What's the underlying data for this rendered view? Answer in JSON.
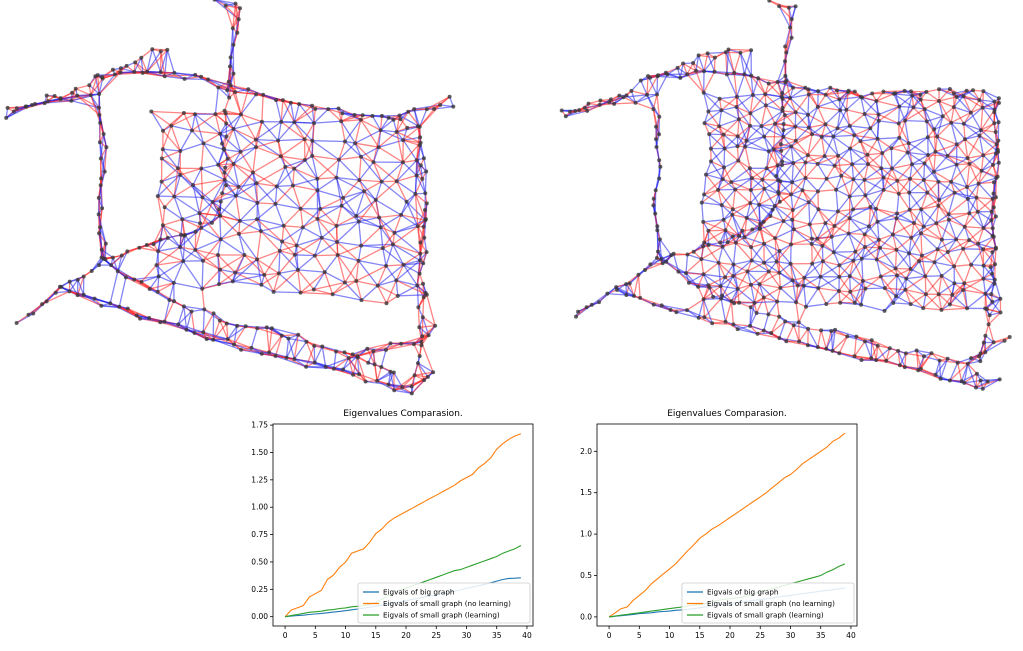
{
  "chart_data": [
    {
      "type": "line",
      "title": "Eigenvalues Comparasion.",
      "xlim": [
        -2,
        41
      ],
      "ylim": [
        -0.085,
        1.76
      ],
      "xticks": [
        "0",
        "5",
        "10",
        "15",
        "20",
        "25",
        "30",
        "35",
        "40"
      ],
      "yticks": [
        "0.00",
        "0.25",
        "0.50",
        "0.75",
        "1.00",
        "1.25",
        "1.50",
        "1.75"
      ],
      "legend_position": "lower-right",
      "x": [
        0,
        1,
        2,
        3,
        4,
        5,
        6,
        7,
        8,
        9,
        10,
        11,
        12,
        13,
        14,
        15,
        16,
        17,
        18,
        19,
        20,
        21,
        22,
        23,
        24,
        25,
        26,
        27,
        28,
        29,
        30,
        31,
        32,
        33,
        34,
        35,
        36,
        37,
        38,
        39
      ],
      "series": [
        {
          "name": "Eigvals of big graph",
          "color": "#1f77b4",
          "values": [
            0,
            0.005,
            0.01,
            0.014,
            0.02,
            0.025,
            0.03,
            0.036,
            0.042,
            0.048,
            0.055,
            0.063,
            0.07,
            0.078,
            0.087,
            0.096,
            0.105,
            0.115,
            0.125,
            0.135,
            0.146,
            0.157,
            0.168,
            0.18,
            0.19,
            0.2,
            0.21,
            0.22,
            0.232,
            0.245,
            0.258,
            0.27,
            0.283,
            0.296,
            0.31,
            0.325,
            0.34,
            0.35,
            0.352,
            0.355
          ]
        },
        {
          "name": "Eigvals of small graph (no learning)",
          "color": "#ff7f0e",
          "values": [
            0,
            0.06,
            0.08,
            0.1,
            0.18,
            0.21,
            0.24,
            0.34,
            0.38,
            0.45,
            0.5,
            0.58,
            0.6,
            0.62,
            0.68,
            0.76,
            0.8,
            0.86,
            0.9,
            0.93,
            0.96,
            0.99,
            1.02,
            1.05,
            1.08,
            1.11,
            1.14,
            1.17,
            1.2,
            1.24,
            1.27,
            1.3,
            1.36,
            1.4,
            1.45,
            1.53,
            1.58,
            1.62,
            1.65,
            1.67
          ]
        },
        {
          "name": "Eigvals of small graph (learning)",
          "color": "#2ca02c",
          "values": [
            0,
            0.01,
            0.02,
            0.03,
            0.04,
            0.045,
            0.05,
            0.06,
            0.065,
            0.075,
            0.08,
            0.09,
            0.095,
            0.1,
            0.11,
            0.13,
            0.16,
            0.19,
            0.22,
            0.24,
            0.26,
            0.28,
            0.3,
            0.32,
            0.34,
            0.36,
            0.38,
            0.4,
            0.42,
            0.43,
            0.45,
            0.47,
            0.49,
            0.51,
            0.53,
            0.55,
            0.58,
            0.6,
            0.62,
            0.65
          ]
        }
      ]
    },
    {
      "type": "line",
      "title": "Eigenvalues Comparasion.",
      "xlim": [
        -2,
        41
      ],
      "ylim": [
        -0.11,
        2.33
      ],
      "xticks": [
        "0",
        "5",
        "10",
        "15",
        "20",
        "25",
        "30",
        "35",
        "40"
      ],
      "yticks": [
        "0.0",
        "0.5",
        "1.0",
        "1.5",
        "2.0"
      ],
      "legend_position": "lower-right",
      "x": [
        0,
        1,
        2,
        3,
        4,
        5,
        6,
        7,
        8,
        9,
        10,
        11,
        12,
        13,
        14,
        15,
        16,
        17,
        18,
        19,
        20,
        21,
        22,
        23,
        24,
        25,
        26,
        27,
        28,
        29,
        30,
        31,
        32,
        33,
        34,
        35,
        36,
        37,
        38,
        39
      ],
      "series": [
        {
          "name": "Eigvals of big graph",
          "color": "#1f77b4",
          "values": [
            0,
            0.008,
            0.015,
            0.022,
            0.03,
            0.04,
            0.045,
            0.05,
            0.06,
            0.065,
            0.07,
            0.08,
            0.085,
            0.09,
            0.1,
            0.11,
            0.12,
            0.13,
            0.14,
            0.15,
            0.16,
            0.17,
            0.18,
            0.19,
            0.2,
            0.21,
            0.22,
            0.23,
            0.24,
            0.25,
            0.26,
            0.27,
            0.28,
            0.29,
            0.3,
            0.31,
            0.32,
            0.33,
            0.34,
            0.35
          ]
        },
        {
          "name": "Eigvals of small graph (no learning)",
          "color": "#ff7f0e",
          "values": [
            0,
            0.05,
            0.1,
            0.12,
            0.2,
            0.26,
            0.32,
            0.4,
            0.46,
            0.52,
            0.58,
            0.64,
            0.72,
            0.8,
            0.87,
            0.95,
            1.0,
            1.06,
            1.1,
            1.15,
            1.2,
            1.25,
            1.3,
            1.35,
            1.4,
            1.45,
            1.5,
            1.56,
            1.62,
            1.68,
            1.72,
            1.78,
            1.85,
            1.9,
            1.95,
            2.0,
            2.05,
            2.12,
            2.16,
            2.22
          ]
        },
        {
          "name": "Eigvals of small graph (learning)",
          "color": "#2ca02c",
          "values": [
            0,
            0.01,
            0.02,
            0.03,
            0.04,
            0.05,
            0.06,
            0.07,
            0.08,
            0.09,
            0.1,
            0.11,
            0.12,
            0.13,
            0.14,
            0.15,
            0.16,
            0.18,
            0.2,
            0.21,
            0.22,
            0.23,
            0.24,
            0.26,
            0.28,
            0.3,
            0.32,
            0.34,
            0.36,
            0.38,
            0.4,
            0.42,
            0.44,
            0.46,
            0.48,
            0.5,
            0.54,
            0.57,
            0.61,
            0.64
          ]
        }
      ]
    }
  ],
  "meshes": [
    {
      "node_color": "#3a3a3a",
      "edge_colors": [
        "#ff2020",
        "#2020ee"
      ]
    },
    {
      "node_color": "#3a3a3a",
      "edge_colors": [
        "#ff2020",
        "#2020ee"
      ]
    }
  ]
}
